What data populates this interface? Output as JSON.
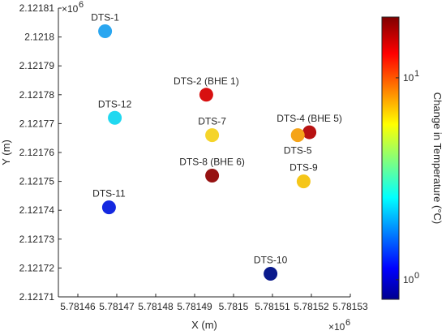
{
  "chart_data": {
    "type": "scatter",
    "xlabel": "X (m)",
    "ylabel": "Y (m)",
    "x_scale_note": "×10",
    "x_scale_exp": "6",
    "y_scale_note": "×10",
    "y_scale_exp": "6",
    "xlim": [
      5781455,
      5781530
    ],
    "ylim": [
      2121710,
      2121810
    ],
    "x_ticks": [
      5781460,
      5781470,
      5781480,
      5781490,
      5781500,
      5781510,
      5781520,
      5781530
    ],
    "x_tick_labels": [
      "5.78146",
      "5.78147",
      "5.78148",
      "5.78149",
      "5.7815",
      "5.78151",
      "5.78152",
      "5.78153"
    ],
    "y_ticks": [
      2121710,
      2121720,
      2121730,
      2121740,
      2121750,
      2121760,
      2121770,
      2121780,
      2121790,
      2121800,
      2121810
    ],
    "y_tick_labels": [
      "2.12171",
      "2.12172",
      "2.12173",
      "2.12174",
      "2.12175",
      "2.12176",
      "2.12177",
      "2.12178",
      "2.12179",
      "2.1218",
      "2.12181"
    ],
    "grid": false,
    "colorbar": {
      "label": "Change in Temperature (°C)",
      "scale": "log",
      "range": [
        0.8,
        20
      ],
      "ticks": [
        1,
        10
      ],
      "tick_base": "10",
      "tick_exps": [
        "0",
        "1"
      ],
      "colormap": "jet"
    },
    "points": [
      {
        "name": "DTS-1",
        "x": 5781467.0,
        "y": 2121802,
        "value": 3.0,
        "color": "#2aa6f0"
      },
      {
        "name": "DTS-2 (BHE 1)",
        "x": 5781493.0,
        "y": 2121780,
        "value": 15.0,
        "color": "#d81010"
      },
      {
        "name": "DTS-4 (BHE 5)",
        "x": 5781519.5,
        "y": 2121767,
        "value": 16.5,
        "color": "#b81212"
      },
      {
        "name": "DTS-5",
        "x": 5781516.5,
        "y": 2121766,
        "value": 7.0,
        "color": "#f5a419"
      },
      {
        "name": "DTS-7",
        "x": 5781494.5,
        "y": 2121766,
        "value": 5.5,
        "color": "#f5d42a"
      },
      {
        "name": "DTS-8 (BHE 6)",
        "x": 5781494.5,
        "y": 2121752,
        "value": 18.0,
        "color": "#961212"
      },
      {
        "name": "DTS-9",
        "x": 5781518.0,
        "y": 2121750,
        "value": 5.5,
        "color": "#f5c619"
      },
      {
        "name": "DTS-10",
        "x": 5781509.5,
        "y": 2121718,
        "value": 0.9,
        "color": "#0a1a8c"
      },
      {
        "name": "DTS-11",
        "x": 5781468.0,
        "y": 2121741,
        "value": 1.4,
        "color": "#1428e0"
      },
      {
        "name": "DTS-12",
        "x": 5781469.5,
        "y": 2121772,
        "value": 3.3,
        "color": "#20d8f0"
      }
    ]
  }
}
